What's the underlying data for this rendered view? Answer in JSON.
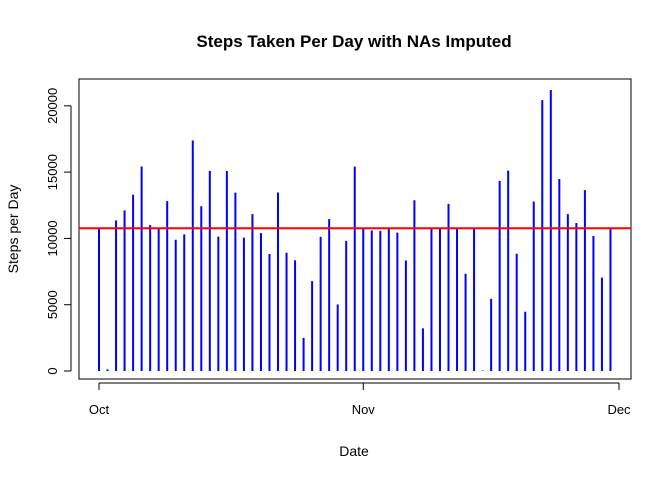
{
  "chart_data": {
    "type": "bar",
    "title": "Steps Taken Per Day with NAs Imputed",
    "xlabel": "Date",
    "ylabel": "Steps per Day",
    "xlim": [
      "2012-10-01",
      "2012-12-01"
    ],
    "ylim": [
      0,
      21194
    ],
    "x_ticks": [
      {
        "date": "2012-10-01",
        "label": "Oct"
      },
      {
        "date": "2012-11-01",
        "label": "Nov"
      },
      {
        "date": "2012-12-01",
        "label": "Dec"
      }
    ],
    "y_ticks": [
      {
        "value": 0,
        "label": "0"
      },
      {
        "value": 5000,
        "label": "5000"
      },
      {
        "value": 10000,
        "label": "10000"
      },
      {
        "value": 15000,
        "label": "15000"
      },
      {
        "value": 20000,
        "label": "20000"
      }
    ],
    "bar_color": "#0000ff",
    "reference_line": {
      "value": 10766,
      "color": "#ff0000"
    },
    "box": true,
    "grid": false,
    "dates": [
      "2012-10-01",
      "2012-10-02",
      "2012-10-03",
      "2012-10-04",
      "2012-10-05",
      "2012-10-06",
      "2012-10-07",
      "2012-10-08",
      "2012-10-09",
      "2012-10-10",
      "2012-10-11",
      "2012-10-12",
      "2012-10-13",
      "2012-10-14",
      "2012-10-15",
      "2012-10-16",
      "2012-10-17",
      "2012-10-18",
      "2012-10-19",
      "2012-10-20",
      "2012-10-21",
      "2012-10-22",
      "2012-10-23",
      "2012-10-24",
      "2012-10-25",
      "2012-10-26",
      "2012-10-27",
      "2012-10-28",
      "2012-10-29",
      "2012-10-30",
      "2012-10-31",
      "2012-11-01",
      "2012-11-02",
      "2012-11-03",
      "2012-11-04",
      "2012-11-05",
      "2012-11-06",
      "2012-11-07",
      "2012-11-08",
      "2012-11-09",
      "2012-11-10",
      "2012-11-11",
      "2012-11-12",
      "2012-11-13",
      "2012-11-14",
      "2012-11-15",
      "2012-11-16",
      "2012-11-17",
      "2012-11-18",
      "2012-11-19",
      "2012-11-20",
      "2012-11-21",
      "2012-11-22",
      "2012-11-23",
      "2012-11-24",
      "2012-11-25",
      "2012-11-26",
      "2012-11-27",
      "2012-11-28",
      "2012-11-29",
      "2012-11-30"
    ],
    "values": [
      10766,
      126,
      11352,
      12116,
      13294,
      15420,
      11015,
      10766,
      12811,
      9900,
      10304,
      17382,
      12426,
      15098,
      10139,
      15084,
      13452,
      10056,
      11829,
      10395,
      8821,
      13460,
      8918,
      8355,
      2492,
      6778,
      10119,
      11458,
      5018,
      9819,
      15414,
      10766,
      10600,
      10571,
      10766,
      10439,
      8334,
      12883,
      3219,
      10766,
      10766,
      12608,
      10765,
      7336,
      10766,
      41,
      5441,
      14339,
      15110,
      8841,
      4472,
      12787,
      20427,
      21194,
      14478,
      11834,
      11162,
      13646,
      10183,
      7047,
      10766
    ]
  }
}
